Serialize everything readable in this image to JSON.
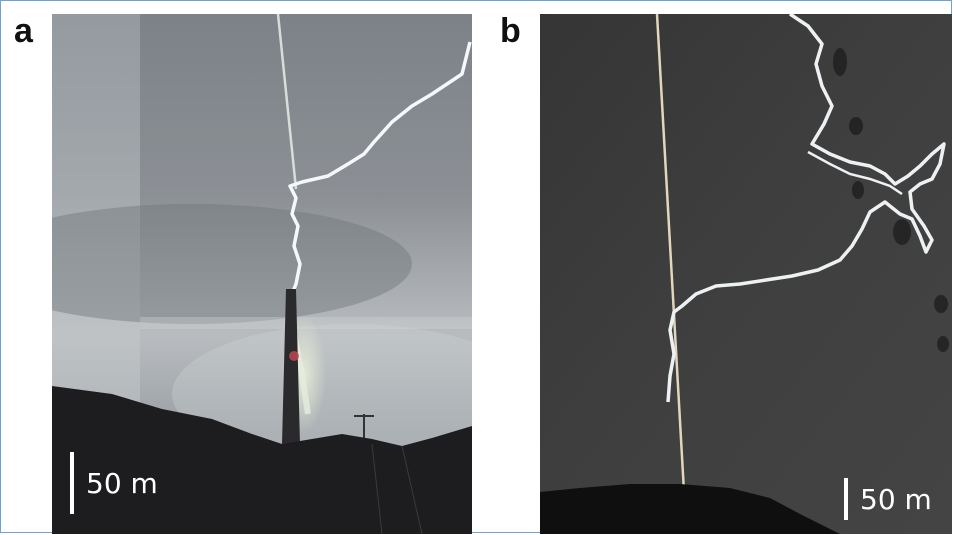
{
  "panels": [
    {
      "letter": "a",
      "scale_label": "50 m"
    },
    {
      "letter": "b",
      "scale_label": "50 m"
    }
  ],
  "colors": {
    "sky_a": "#9ea3a8",
    "ground": "#1f1f22",
    "sky_b": "#3a3a3a",
    "lightning": "#f3f6f8",
    "laser": "#e9e0c8"
  }
}
